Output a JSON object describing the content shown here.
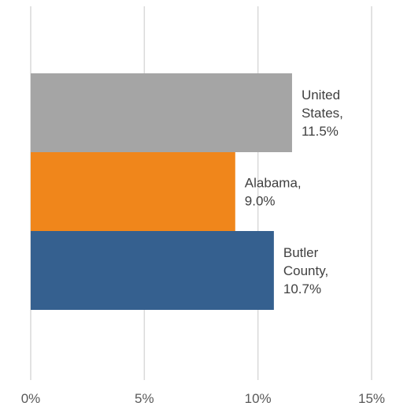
{
  "chart_data": {
    "type": "bar",
    "orientation": "horizontal",
    "categories": [
      "United States",
      "Alabama",
      "Butler County"
    ],
    "values": [
      11.5,
      9.0,
      10.7
    ],
    "data_labels": [
      [
        "United",
        "States,",
        "11.5%"
      ],
      [
        "Alabama,",
        "9.0%"
      ],
      [
        "Butler",
        "County,",
        "10.7%"
      ]
    ],
    "colors": [
      "#a5a5a5",
      "#f0861b",
      "#35608f"
    ],
    "xlim": [
      0,
      15
    ],
    "x_ticks": [
      0,
      5,
      10,
      15
    ],
    "x_tick_labels": [
      "0%",
      "5%",
      "10%",
      "15%"
    ],
    "title": "",
    "xlabel": "",
    "ylabel": "",
    "grid": "vertical",
    "legend": "none"
  }
}
